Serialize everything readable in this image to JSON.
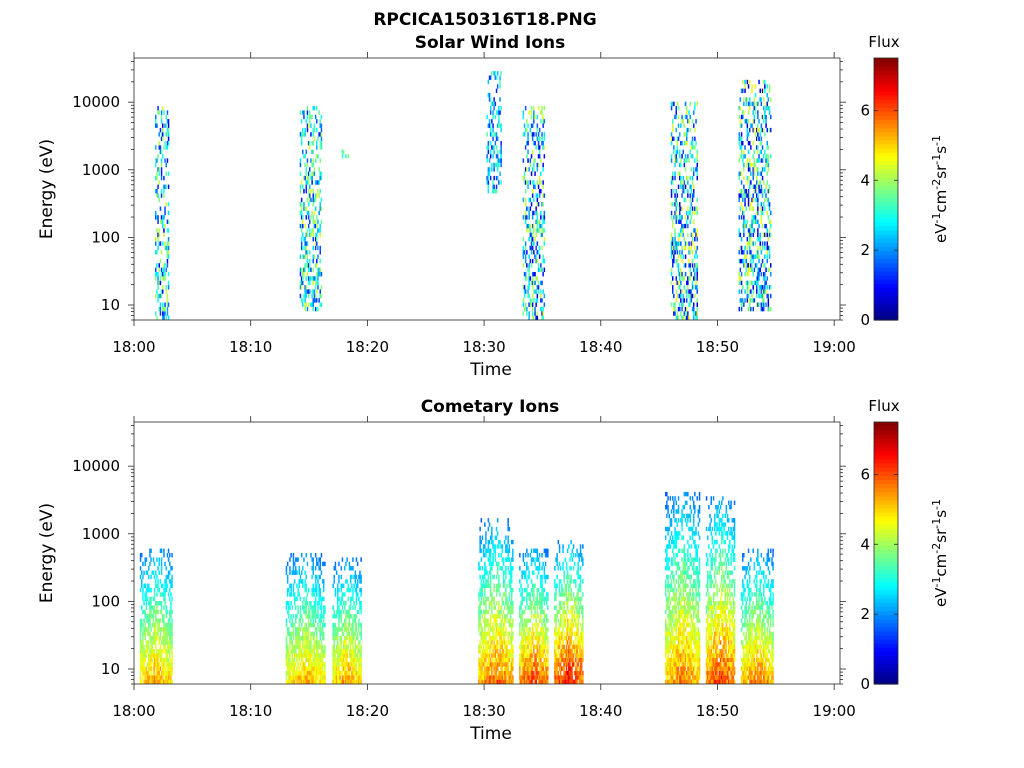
{
  "figure": {
    "filename_title": "RPCICA150316T18.PNG"
  },
  "chart_data": [
    {
      "type": "heatmap",
      "title": "Solar Wind Ions",
      "xlabel": "Time",
      "ylabel": "Energy (eV)",
      "x_ticks": [
        "18:00",
        "18:10",
        "18:20",
        "18:30",
        "18:40",
        "18:50",
        "19:00"
      ],
      "x_range_minutes": [
        0,
        60.5
      ],
      "y_scale": "log",
      "y_ticks": [
        10,
        100,
        1000,
        10000
      ],
      "y_tick_labels": [
        "10",
        "100",
        "1000",
        "10000"
      ],
      "y_range": [
        6,
        45000
      ],
      "colorbar": {
        "title": "Flux",
        "unit_label": "eV-1cm-2sr-1s-1",
        "ticks": [
          0,
          2,
          4,
          6
        ],
        "range": [
          0,
          7.5
        ]
      },
      "bursts": [
        {
          "start_min": 1.8,
          "end_min": 3.0,
          "e_low": 6,
          "e_high": 8000,
          "flux": [
            0.8,
            4.5
          ]
        },
        {
          "start_min": 14.2,
          "end_min": 16.0,
          "e_low": 8,
          "e_high": 8000,
          "flux": [
            1.0,
            4.5
          ]
        },
        {
          "start_min": 17.8,
          "end_min": 18.4,
          "e_low": 1300,
          "e_high": 1800,
          "flux": [
            3.0,
            4.0
          ]
        },
        {
          "start_min": 30.2,
          "end_min": 31.5,
          "e_low": 400,
          "e_high": 25000,
          "flux": [
            1.0,
            3.5
          ]
        },
        {
          "start_min": 33.3,
          "end_min": 35.2,
          "e_low": 6,
          "e_high": 8000,
          "flux": [
            0.5,
            4.5
          ]
        },
        {
          "start_min": 46.0,
          "end_min": 48.3,
          "e_low": 6,
          "e_high": 9000,
          "flux": [
            0.5,
            4.8
          ]
        },
        {
          "start_min": 51.8,
          "end_min": 54.6,
          "e_low": 8,
          "e_high": 20000,
          "flux": [
            0.5,
            4.8
          ]
        }
      ]
    },
    {
      "type": "heatmap",
      "title": "Cometary Ions",
      "xlabel": "Time",
      "ylabel": "Energy (eV)",
      "x_ticks": [
        "18:00",
        "18:10",
        "18:20",
        "18:30",
        "18:40",
        "18:50",
        "19:00"
      ],
      "x_range_minutes": [
        0,
        60.5
      ],
      "y_scale": "log",
      "y_ticks": [
        10,
        100,
        1000,
        10000
      ],
      "y_tick_labels": [
        "10",
        "100",
        "1000",
        "10000"
      ],
      "y_range": [
        6,
        45000
      ],
      "colorbar": {
        "title": "Flux",
        "unit_label": "eV-1cm-2sr-1s-1",
        "ticks": [
          0,
          2,
          4,
          6
        ],
        "range": [
          0,
          7.5
        ]
      },
      "bursts": [
        {
          "start_min": 0.5,
          "end_min": 3.3,
          "e_low": 6,
          "e_high": 600,
          "flux": [
            1.5,
            6.0
          ]
        },
        {
          "start_min": 13.0,
          "end_min": 16.3,
          "e_low": 6,
          "e_high": 500,
          "flux": [
            1.5,
            5.8
          ]
        },
        {
          "start_min": 17.0,
          "end_min": 19.5,
          "e_low": 6,
          "e_high": 400,
          "flux": [
            1.5,
            6.0
          ]
        },
        {
          "start_min": 29.5,
          "end_min": 32.5,
          "e_low": 6,
          "e_high": 1500,
          "flux": [
            1.5,
            6.5
          ]
        },
        {
          "start_min": 33.0,
          "end_min": 35.5,
          "e_low": 6,
          "e_high": 600,
          "flux": [
            1.5,
            6.8
          ]
        },
        {
          "start_min": 36.0,
          "end_min": 38.5,
          "e_low": 6,
          "e_high": 800,
          "flux": [
            1.5,
            7.3
          ]
        },
        {
          "start_min": 45.5,
          "end_min": 48.5,
          "e_low": 6,
          "e_high": 4000,
          "flux": [
            1.5,
            6.3
          ]
        },
        {
          "start_min": 49.0,
          "end_min": 51.5,
          "e_low": 6,
          "e_high": 3500,
          "flux": [
            1.5,
            6.8
          ]
        },
        {
          "start_min": 52.0,
          "end_min": 54.8,
          "e_low": 6,
          "e_high": 600,
          "flux": [
            1.5,
            6.3
          ]
        }
      ]
    }
  ]
}
